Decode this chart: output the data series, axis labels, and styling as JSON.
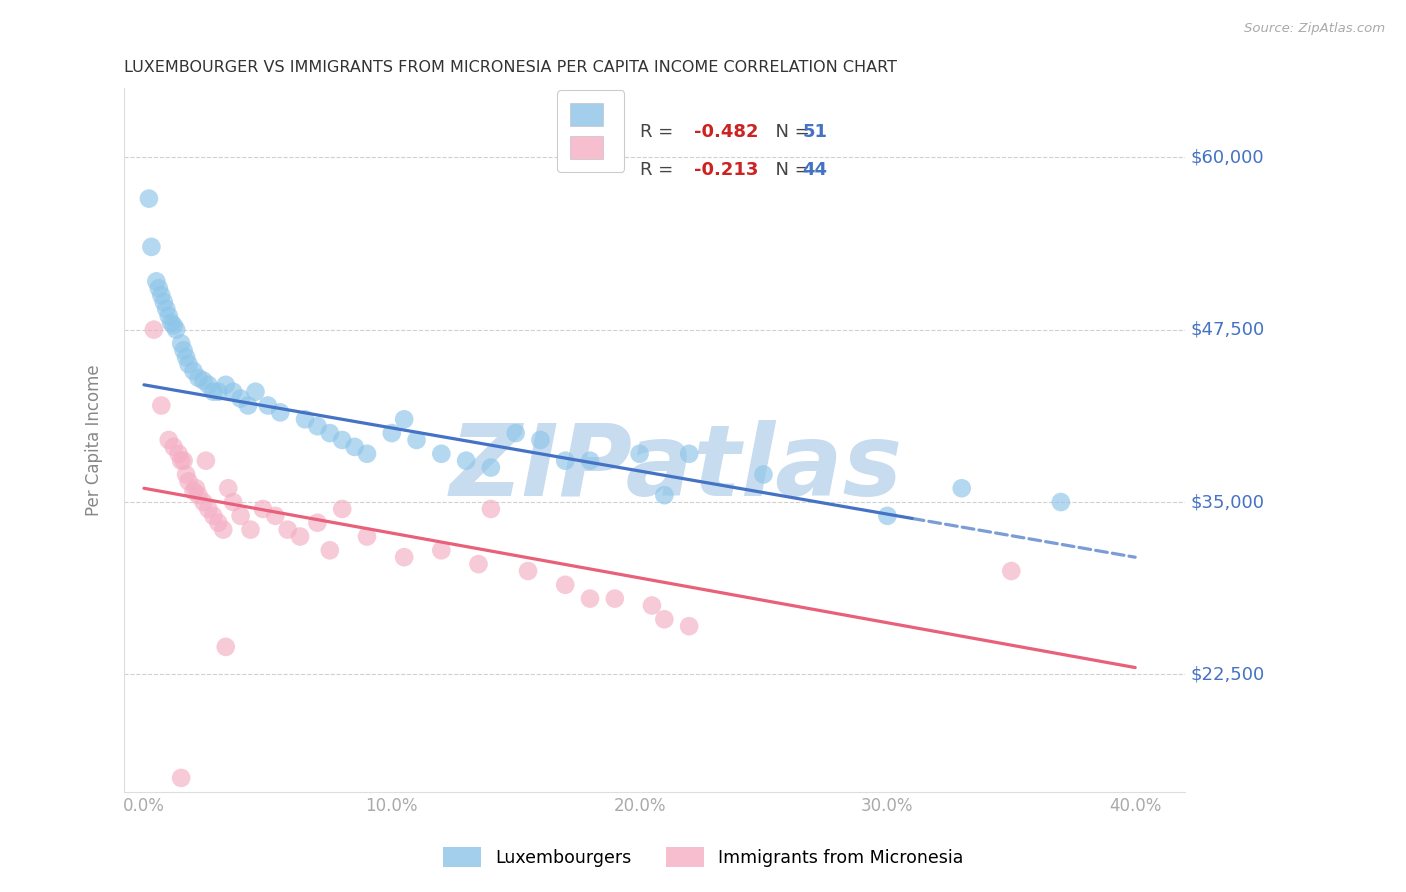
{
  "title": "LUXEMBOURGER VS IMMIGRANTS FROM MICRONESIA PER CAPITA INCOME CORRELATION CHART",
  "source": "Source: ZipAtlas.com",
  "ylabel": "Per Capita Income",
  "ytick_vals": [
    22500,
    35000,
    47500,
    60000
  ],
  "ytick_labels": [
    "$22,500",
    "$35,000",
    "$47,500",
    "$60,000"
  ],
  "xtick_vals": [
    0.0,
    10.0,
    20.0,
    30.0,
    40.0
  ],
  "xtick_labels": [
    "0.0%",
    "10.0%",
    "20.0%",
    "30.0%",
    "40.0%"
  ],
  "ylim": [
    14000,
    65000
  ],
  "xlim": [
    -0.8,
    42.0
  ],
  "blue_R": -0.482,
  "blue_N": 51,
  "pink_R": -0.213,
  "pink_N": 44,
  "blue_scatter_color": "#8cc4e8",
  "pink_scatter_color": "#f4aec4",
  "blue_line_color": "#4472c4",
  "pink_line_color": "#e8607a",
  "blue_line_y0": 43500,
  "blue_line_y40": 31000,
  "pink_line_y0": 36000,
  "pink_line_y40": 23000,
  "blue_dash_from": 31.0,
  "watermark": "ZIPatlas",
  "watermark_color": "#c8dcf0",
  "legend_label_blue": "Luxembourgers",
  "legend_label_pink": "Immigrants from Micronesia",
  "blue_scatter_x": [
    0.2,
    0.3,
    0.5,
    0.6,
    0.7,
    0.8,
    0.9,
    1.0,
    1.1,
    1.2,
    1.3,
    1.5,
    1.6,
    1.7,
    1.8,
    2.0,
    2.2,
    2.4,
    2.6,
    2.8,
    3.0,
    3.3,
    3.6,
    3.9,
    4.2,
    4.5,
    5.0,
    5.5,
    6.5,
    7.0,
    7.5,
    8.0,
    8.5,
    9.0,
    10.0,
    10.5,
    11.0,
    12.0,
    13.0,
    14.0,
    15.0,
    16.0,
    17.0,
    18.0,
    20.0,
    21.0,
    22.0,
    25.0,
    30.0,
    33.0,
    37.0
  ],
  "blue_scatter_y": [
    57000,
    53500,
    51000,
    50500,
    50000,
    49500,
    49000,
    48500,
    48000,
    47800,
    47500,
    46500,
    46000,
    45500,
    45000,
    44500,
    44000,
    43800,
    43500,
    43000,
    43000,
    43500,
    43000,
    42500,
    42000,
    43000,
    42000,
    41500,
    41000,
    40500,
    40000,
    39500,
    39000,
    38500,
    40000,
    41000,
    39500,
    38500,
    38000,
    37500,
    40000,
    39500,
    38000,
    38000,
    38500,
    35500,
    38500,
    37000,
    34000,
    36000,
    35000
  ],
  "pink_scatter_x": [
    0.4,
    0.7,
    1.0,
    1.2,
    1.4,
    1.5,
    1.6,
    1.7,
    1.8,
    2.0,
    2.1,
    2.2,
    2.4,
    2.5,
    2.6,
    2.8,
    3.0,
    3.2,
    3.4,
    3.6,
    3.9,
    4.3,
    4.8,
    5.3,
    5.8,
    6.3,
    7.0,
    7.5,
    8.0,
    9.0,
    10.5,
    12.0,
    13.5,
    14.0,
    15.5,
    17.0,
    18.0,
    19.0,
    20.5,
    22.0,
    1.5,
    3.3,
    35.0,
    21.0
  ],
  "pink_scatter_y": [
    47500,
    42000,
    39500,
    39000,
    38500,
    15000,
    38000,
    37000,
    36500,
    35800,
    36000,
    35500,
    35000,
    38000,
    34500,
    34000,
    33500,
    33000,
    36000,
    35000,
    34000,
    33000,
    34500,
    34000,
    33000,
    32500,
    33500,
    31500,
    34500,
    32500,
    31000,
    31500,
    30500,
    34500,
    30000,
    29000,
    28000,
    28000,
    27500,
    26000,
    38000,
    24500,
    30000,
    26500
  ]
}
